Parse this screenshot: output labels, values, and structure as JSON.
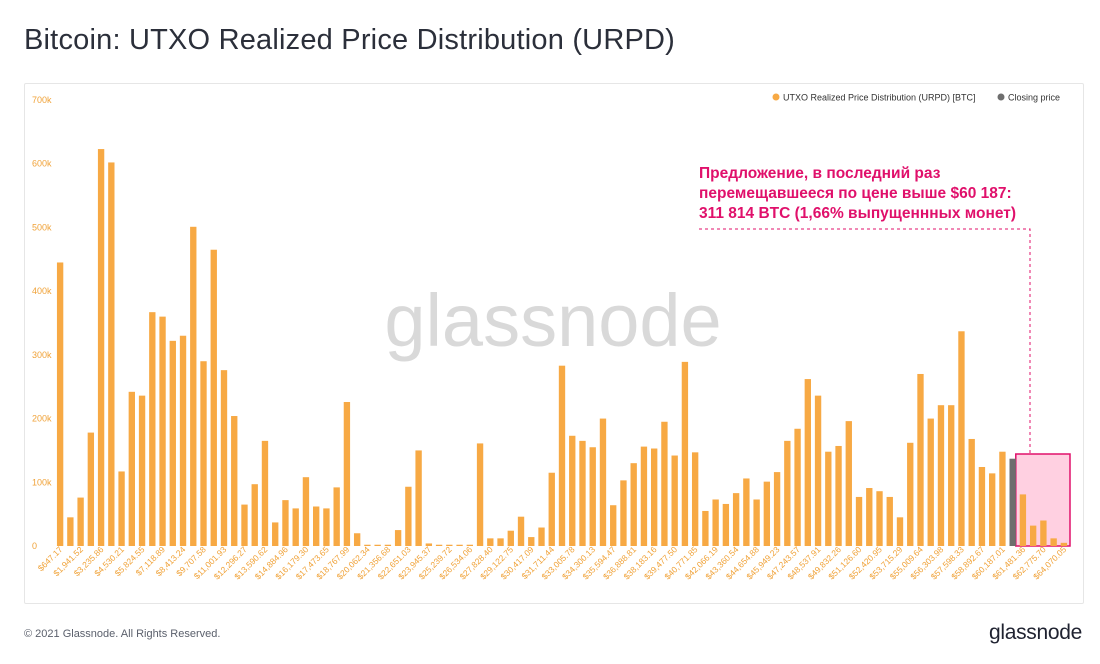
{
  "title": "Bitcoin: UTXO Realized Price Distribution (URPD)",
  "footer": {
    "copyright": "© 2021 Glassnode. All Rights Reserved.",
    "logo": "glassnode"
  },
  "watermark": "glassnode",
  "colors": {
    "bar": "#f7a944",
    "closing": "#6e6e6e",
    "annotation": "#e0106b",
    "highlight_fill": "#ffc0d7",
    "axis_text": "#f0a238"
  },
  "annotation": {
    "lines": [
      "Предложение, в последний раз",
      "перемещавшееся по цене выше $60 187:",
      "311 814 BTC (1,66% выпущеннных монет)"
    ]
  },
  "chart_data": {
    "type": "bar",
    "legend": [
      {
        "name": "UTXO Realized Price Distribution (URPD) [BTC]",
        "color": "#f7a944"
      },
      {
        "name": "Closing price",
        "color": "#6e6e6e"
      }
    ],
    "legend_position": "top-right",
    "ylim": [
      0,
      700000
    ],
    "y_ticks": [
      0,
      100000,
      200000,
      300000,
      400000,
      500000,
      600000,
      700000
    ],
    "y_tick_labels": [
      "0",
      "100k",
      "200k",
      "300k",
      "400k",
      "500k",
      "600k",
      "700k"
    ],
    "x_tick_labels": [
      "$647.17",
      "$1,941.52",
      "$3,235.86",
      "$4,530.21",
      "$5,824.55",
      "$7,118.89",
      "$8,413.24",
      "$9,707.58",
      "$11,001.93",
      "$12,296.27",
      "$13,590.62",
      "$14,884.96",
      "$16,179.30",
      "$17,473.65",
      "$18,767.99",
      "$20,062.34",
      "$21,356.68",
      "$22,651.03",
      "$23,945.37",
      "$25,239.72",
      "$26,534.06",
      "$27,828.40",
      "$29,122.75",
      "$30,417.09",
      "$31,711.44",
      "$33,005.78",
      "$34,300.13",
      "$35,594.47",
      "$36,888.81",
      "$38,183.16",
      "$39,477.50",
      "$40,771.85",
      "$42,066.19",
      "$43,360.54",
      "$44,654.88",
      "$45,949.23",
      "$47,243.57",
      "$48,537.91",
      "$49,832.26",
      "$51,126.60",
      "$52,420.95",
      "$53,715.29",
      "$55,009.64",
      "$56,303.98",
      "$57,598.33",
      "$58,892.67",
      "$60,187.01",
      "$61,481.36",
      "$62,775.70",
      "$64,070.05"
    ],
    "values": [
      445000,
      45000,
      76000,
      178000,
      623000,
      602000,
      117000,
      242000,
      236000,
      367000,
      360000,
      322000,
      330000,
      501000,
      290000,
      465000,
      276000,
      204000,
      65000,
      97000,
      165000,
      37000,
      72000,
      59000,
      108000,
      62000,
      59000,
      92000,
      226000,
      20000,
      2000,
      2000,
      2000,
      25000,
      93000,
      150000,
      4000,
      2000,
      2000,
      2000,
      2000,
      161000,
      12000,
      12000,
      24000,
      46000,
      14000,
      29000,
      115000,
      283000,
      173000,
      165000,
      155000,
      200000,
      64000,
      103000,
      130000,
      156000,
      153000,
      195000,
      142000,
      289000,
      147000,
      55000,
      73000,
      66000,
      83000,
      106000,
      73000,
      101000,
      116000,
      165000,
      184000,
      262000,
      236000,
      148000,
      157000,
      196000,
      77000,
      91000,
      86000,
      77000,
      45000,
      162000,
      270000,
      200000,
      221000,
      221000,
      337000,
      168000,
      124000,
      114000,
      148000,
      137000,
      81000,
      32000,
      40000,
      12000,
      5000
    ],
    "closing_index": 93,
    "highlight_range": [
      94,
      98
    ],
    "grid": false
  }
}
